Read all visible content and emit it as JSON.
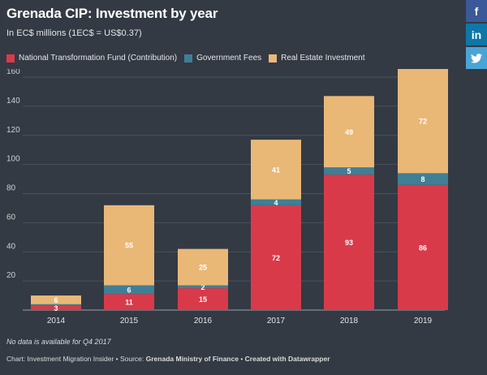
{
  "header": {
    "title": "Grenada CIP: Investment by year",
    "subtitle": "In EC$ millions (1EC$ = US$0.37)"
  },
  "social": {
    "facebook": "f",
    "linkedin": "in",
    "twitter": "❖"
  },
  "footnote": "No data is available for Q4 2017",
  "footer": {
    "prefix": "Chart: Investment Migration Insider • Source: ",
    "source": "Grenada Ministry of Finance",
    "sep": " • ",
    "credit": "Created with Datawrapper"
  },
  "colors": {
    "ntf": "#d93a4a",
    "fees": "#3f7f95",
    "real_estate": "#e9b877",
    "background": "#333a44",
    "grid": "#4a525d"
  },
  "chart_data": {
    "type": "bar",
    "stacked": true,
    "categories": [
      "2014",
      "2015",
      "2016",
      "2017",
      "2018",
      "2019"
    ],
    "series": [
      {
        "name": "National Transformation Fund (Contribution)",
        "color": "#d93a4a",
        "values": [
          3,
          11,
          15,
          72,
          93,
          86
        ],
        "labels": [
          "3",
          "11",
          "15",
          "72",
          "93",
          "86"
        ]
      },
      {
        "name": "Government Fees",
        "color": "#3f7f95",
        "values": [
          1,
          6,
          2,
          4,
          5,
          8
        ],
        "labels": [
          "",
          "6",
          "2",
          "4",
          "5",
          "8"
        ]
      },
      {
        "name": "Real Estate Investment",
        "color": "#e9b877",
        "values": [
          6,
          55,
          25,
          41,
          49,
          72
        ],
        "labels": [
          "6",
          "55",
          "25",
          "41",
          "49",
          "72"
        ]
      }
    ],
    "yticks": [
      20,
      40,
      60,
      80,
      100,
      120,
      140,
      160
    ],
    "ylim": [
      0,
      160
    ],
    "legend_position": "top-left",
    "grid": true
  }
}
